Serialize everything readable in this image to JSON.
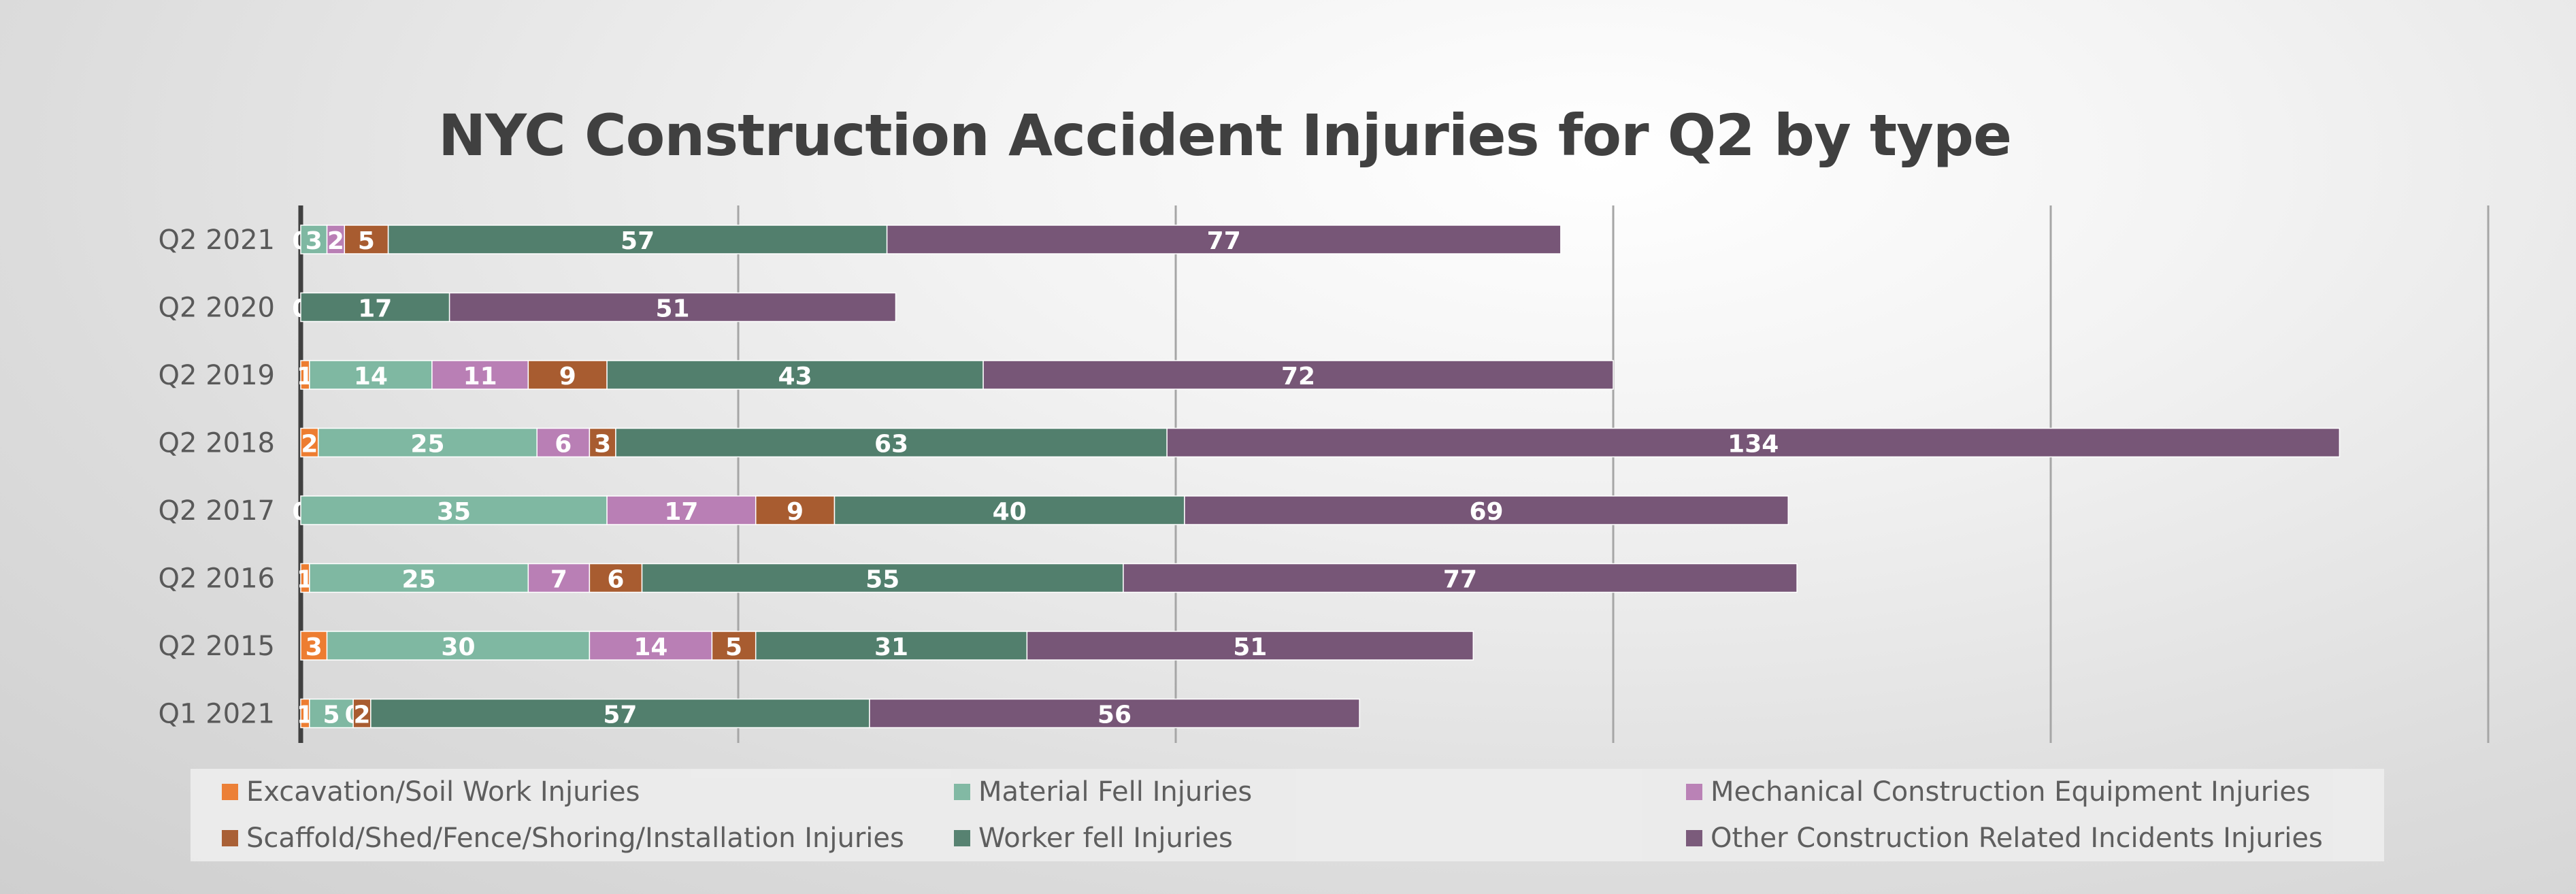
{
  "chart_data": {
    "type": "bar",
    "orientation": "horizontal",
    "stacked": true,
    "title": "NYC Construction Accident Injuries for Q2 by type",
    "categories": [
      "Q2 2021",
      "Q2 2020",
      "Q2 2019",
      "Q2 2018",
      "Q2 2017",
      "Q2 2016",
      "Q2 2015",
      "Q1 2021"
    ],
    "series": [
      {
        "name": "Excavation/Soil Work Injuries",
        "color": "#ed7d31",
        "values": [
          0,
          0,
          1,
          2,
          0,
          1,
          3,
          1
        ]
      },
      {
        "name": "Material Fell Injuries",
        "color": "#7fb8a2",
        "values": [
          3,
          0,
          14,
          25,
          35,
          25,
          30,
          5
        ]
      },
      {
        "name": "Mechanical Construction Equipment Injuries",
        "color": "#b97fb5",
        "values": [
          2,
          0,
          11,
          6,
          17,
          7,
          14,
          0
        ]
      },
      {
        "name": "Scaffold/Shed/Fence/Shoring/Installation Injuries",
        "color": "#a85c30",
        "values": [
          5,
          0,
          9,
          3,
          9,
          6,
          5,
          2
        ]
      },
      {
        "name": "Worker fell Injuries",
        "color": "#527f6d",
        "values": [
          57,
          17,
          43,
          63,
          40,
          55,
          31,
          57
        ]
      },
      {
        "name": "Other Construction Related Incidents Injuries",
        "color": "#775677",
        "values": [
          77,
          51,
          72,
          134,
          69,
          77,
          51,
          56
        ]
      }
    ],
    "xlim": [
      0,
      250
    ],
    "x_grid_step": 50,
    "grid": true,
    "show_x_tick_labels": false,
    "legend_position": "bottom"
  }
}
